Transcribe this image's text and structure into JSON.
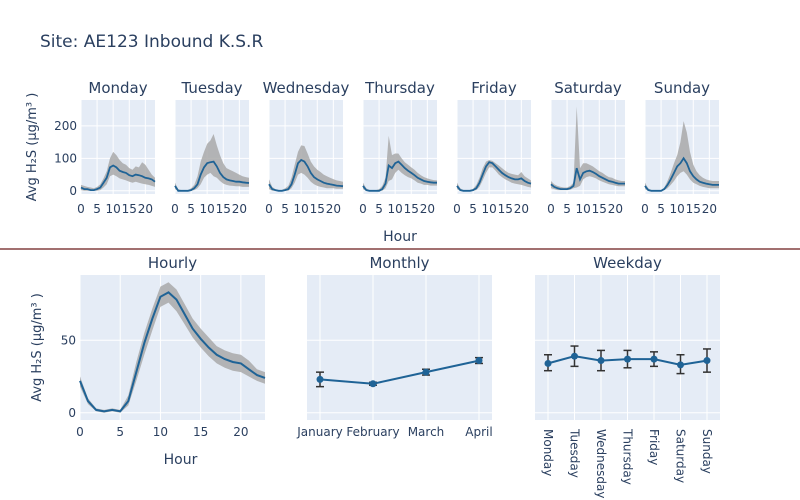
{
  "page_title": "Site: AE123 Inbound K.S.R",
  "colors": {
    "plot_bg": "#e5ecf6",
    "line": "#1f6396",
    "band": "#a9a9a9",
    "grid": "#ffffff",
    "divider": "#6b1a1a",
    "text": "#2a3f5f",
    "error_bar": "#333333"
  },
  "chart_data": [
    {
      "type": "line",
      "title": "Monday",
      "panel": "daily",
      "x": [
        0,
        1,
        2,
        3,
        4,
        5,
        6,
        7,
        8,
        9,
        10,
        11,
        12,
        13,
        14,
        15,
        16,
        17,
        18,
        19,
        20,
        21,
        22,
        23
      ],
      "series": [
        {
          "values": [
            10,
            5,
            5,
            2,
            2,
            5,
            10,
            25,
            40,
            72,
            78,
            72,
            62,
            58,
            55,
            48,
            45,
            50,
            48,
            45,
            40,
            38,
            35,
            28
          ]
        },
        {
          "values": [
            18,
            15,
            12,
            10,
            8,
            12,
            20,
            38,
            60,
            100,
            120,
            110,
            95,
            85,
            80,
            70,
            65,
            75,
            72,
            88,
            80,
            65,
            50,
            40
          ]
        },
        {
          "values": [
            2,
            0,
            0,
            0,
            0,
            0,
            2,
            10,
            20,
            45,
            50,
            45,
            38,
            35,
            32,
            28,
            25,
            28,
            25,
            22,
            20,
            18,
            15,
            12
          ]
        }
      ],
      "ylabel": "Avg H₂S (μg/m³ )",
      "xticks": [
        0,
        5,
        10,
        15,
        20
      ],
      "yticks": [
        0,
        100,
        200
      ],
      "ylim": [
        -10,
        280
      ]
    },
    {
      "type": "line",
      "title": "Tuesday",
      "panel": "daily",
      "x": [
        0,
        1,
        2,
        3,
        4,
        5,
        6,
        7,
        8,
        9,
        10,
        11,
        12,
        13,
        14,
        15,
        16,
        17,
        18,
        19,
        20,
        21,
        22,
        23
      ],
      "series": [
        {
          "values": [
            15,
            0,
            0,
            0,
            0,
            2,
            8,
            20,
            50,
            72,
            85,
            88,
            90,
            75,
            55,
            42,
            35,
            32,
            30,
            28,
            28,
            26,
            25,
            24
          ]
        },
        {
          "values": [
            25,
            5,
            2,
            2,
            2,
            8,
            18,
            45,
            90,
            120,
            145,
            155,
            175,
            140,
            110,
            85,
            70,
            65,
            60,
            55,
            50,
            45,
            42,
            40
          ]
        },
        {
          "values": [
            5,
            0,
            0,
            0,
            0,
            0,
            2,
            8,
            20,
            40,
            50,
            55,
            45,
            40,
            30,
            22,
            18,
            16,
            15,
            14,
            14,
            12,
            12,
            12
          ]
        }
      ],
      "xticks": [
        0,
        5,
        10,
        15,
        20
      ],
      "ylim": [
        -10,
        280
      ]
    },
    {
      "type": "line",
      "title": "Wednesday",
      "panel": "daily",
      "x": [
        0,
        1,
        2,
        3,
        4,
        5,
        6,
        7,
        8,
        9,
        10,
        11,
        12,
        13,
        14,
        15,
        16,
        17,
        18,
        19,
        20,
        21,
        22,
        23
      ],
      "series": [
        {
          "values": [
            20,
            5,
            2,
            0,
            0,
            2,
            5,
            20,
            50,
            85,
            95,
            90,
            75,
            55,
            42,
            35,
            30,
            25,
            22,
            20,
            18,
            16,
            15,
            14
          ]
        },
        {
          "values": [
            35,
            12,
            5,
            2,
            2,
            8,
            15,
            40,
            80,
            120,
            140,
            138,
            115,
            90,
            75,
            65,
            58,
            50,
            45,
            40,
            36,
            32,
            30,
            28
          ]
        },
        {
          "values": [
            5,
            0,
            0,
            0,
            0,
            0,
            0,
            8,
            25,
            50,
            55,
            50,
            40,
            28,
            20,
            15,
            12,
            10,
            8,
            8,
            8,
            6,
            6,
            6
          ]
        }
      ],
      "xticks": [
        0,
        5,
        10,
        15,
        20
      ],
      "ylim": [
        -10,
        280
      ]
    },
    {
      "type": "line",
      "title": "Thursday",
      "panel": "daily",
      "x": [
        0,
        1,
        2,
        3,
        4,
        5,
        6,
        7,
        8,
        9,
        10,
        11,
        12,
        13,
        14,
        15,
        16,
        17,
        18,
        19,
        20,
        21,
        22,
        23
      ],
      "series": [
        {
          "values": [
            15,
            2,
            0,
            0,
            0,
            0,
            5,
            22,
            78,
            70,
            85,
            90,
            80,
            70,
            62,
            55,
            48,
            40,
            35,
            30,
            28,
            26,
            25,
            25
          ]
        },
        {
          "values": [
            25,
            8,
            2,
            2,
            2,
            5,
            15,
            40,
            170,
            110,
            115,
            115,
            100,
            88,
            80,
            72,
            65,
            55,
            48,
            42,
            38,
            35,
            33,
            32
          ]
        },
        {
          "values": [
            5,
            0,
            0,
            0,
            0,
            0,
            0,
            8,
            30,
            35,
            55,
            65,
            55,
            48,
            42,
            38,
            32,
            25,
            22,
            18,
            18,
            16,
            16,
            16
          ]
        }
      ],
      "xticks": [
        0,
        5,
        10,
        15,
        20
      ],
      "ylim": [
        -10,
        280
      ]
    },
    {
      "type": "line",
      "title": "Friday",
      "panel": "daily",
      "x": [
        0,
        1,
        2,
        3,
        4,
        5,
        6,
        7,
        8,
        9,
        10,
        11,
        12,
        13,
        14,
        15,
        16,
        17,
        18,
        19,
        20,
        21,
        22,
        23
      ],
      "series": [
        {
          "values": [
            15,
            2,
            0,
            0,
            0,
            2,
            8,
            25,
            50,
            75,
            88,
            85,
            75,
            65,
            55,
            48,
            42,
            38,
            35,
            35,
            38,
            30,
            25,
            22
          ]
        },
        {
          "values": [
            25,
            8,
            2,
            2,
            2,
            6,
            18,
            40,
            70,
            90,
            95,
            92,
            85,
            78,
            70,
            62,
            55,
            52,
            50,
            48,
            58,
            45,
            38,
            32
          ]
        },
        {
          "values": [
            5,
            0,
            0,
            0,
            0,
            0,
            2,
            12,
            32,
            55,
            72,
            72,
            62,
            50,
            42,
            35,
            30,
            25,
            22,
            20,
            18,
            15,
            12,
            10
          ]
        }
      ],
      "xticks": [
        0,
        5,
        10,
        15,
        20
      ],
      "ylim": [
        -10,
        280
      ]
    },
    {
      "type": "line",
      "title": "Saturday",
      "panel": "daily",
      "x": [
        0,
        1,
        2,
        3,
        4,
        5,
        6,
        7,
        8,
        9,
        10,
        11,
        12,
        13,
        14,
        15,
        16,
        17,
        18,
        19,
        20,
        21,
        22,
        23
      ],
      "series": [
        {
          "values": [
            20,
            12,
            8,
            5,
            5,
            5,
            8,
            15,
            70,
            35,
            55,
            60,
            62,
            58,
            52,
            45,
            40,
            35,
            30,
            28,
            25,
            22,
            22,
            22
          ]
        },
        {
          "values": [
            30,
            20,
            15,
            12,
            10,
            10,
            15,
            25,
            260,
            70,
            85,
            85,
            80,
            75,
            68,
            60,
            55,
            48,
            42,
            40,
            35,
            32,
            30,
            30
          ]
        },
        {
          "values": [
            8,
            5,
            2,
            2,
            2,
            2,
            3,
            8,
            10,
            15,
            35,
            42,
            45,
            42,
            38,
            32,
            28,
            24,
            20,
            18,
            16,
            14,
            14,
            14
          ]
        }
      ],
      "xticks": [
        0,
        5,
        10,
        15,
        20
      ],
      "ylim": [
        -10,
        280
      ]
    },
    {
      "type": "line",
      "title": "Sunday",
      "panel": "daily",
      "x": [
        0,
        1,
        2,
        3,
        4,
        5,
        6,
        7,
        8,
        9,
        10,
        11,
        12,
        13,
        14,
        15,
        16,
        17,
        18,
        19,
        20,
        21,
        22,
        23
      ],
      "series": [
        {
          "values": [
            15,
            2,
            0,
            0,
            0,
            0,
            5,
            18,
            35,
            55,
            75,
            85,
            100,
            85,
            60,
            45,
            35,
            28,
            25,
            22,
            20,
            18,
            18,
            18
          ]
        },
        {
          "values": [
            25,
            8,
            2,
            2,
            2,
            2,
            10,
            30,
            55,
            85,
            110,
            150,
            215,
            180,
            120,
            80,
            60,
            48,
            40,
            35,
            32,
            30,
            30,
            30
          ]
        },
        {
          "values": [
            5,
            0,
            0,
            0,
            0,
            0,
            2,
            8,
            18,
            30,
            45,
            55,
            60,
            50,
            35,
            25,
            20,
            15,
            12,
            10,
            8,
            8,
            8,
            8
          ]
        }
      ],
      "xticks": [
        0,
        5,
        10,
        15,
        20
      ],
      "ylim": [
        -10,
        280
      ]
    },
    {
      "type": "line",
      "title": "Hourly",
      "panel": "hourly",
      "x": [
        0,
        1,
        2,
        3,
        4,
        5,
        6,
        7,
        8,
        9,
        10,
        11,
        12,
        13,
        14,
        15,
        16,
        17,
        18,
        19,
        20,
        21,
        22,
        23
      ],
      "series": [
        {
          "values": [
            22,
            8,
            2,
            1,
            2,
            1,
            8,
            28,
            48,
            65,
            80,
            83,
            78,
            68,
            58,
            51,
            45,
            40,
            37,
            35,
            34,
            30,
            26,
            24
          ]
        },
        {
          "values": [
            25,
            10,
            3,
            2,
            3,
            2,
            12,
            35,
            55,
            72,
            87,
            90,
            85,
            75,
            65,
            58,
            52,
            46,
            43,
            41,
            40,
            36,
            30,
            28
          ]
        },
        {
          "values": [
            18,
            6,
            1,
            0,
            1,
            0,
            5,
            22,
            40,
            57,
            73,
            76,
            70,
            61,
            52,
            45,
            39,
            34,
            31,
            29,
            28,
            25,
            22,
            20
          ]
        }
      ],
      "xlabel": "Hour",
      "ylabel": "Avg H₂S (μg/m³ )",
      "xticks": [
        0,
        5,
        10,
        15,
        20
      ],
      "yticks": [
        0,
        50
      ],
      "ylim": [
        -5,
        95
      ],
      "xlim": [
        0,
        23
      ]
    },
    {
      "type": "line",
      "title": "Monthly",
      "panel": "monthly",
      "categories": [
        "January",
        "February",
        "March",
        "April"
      ],
      "values": [
        23,
        20,
        28,
        36
      ],
      "error_low": [
        18,
        19,
        26,
        34
      ],
      "error_high": [
        28,
        21,
        30,
        38
      ],
      "ylim": [
        -5,
        95
      ]
    },
    {
      "type": "line",
      "title": "Weekday",
      "panel": "weekday",
      "categories": [
        "Monday",
        "Tuesday",
        "Wednesday",
        "Thursday",
        "Friday",
        "Saturday",
        "Sunday"
      ],
      "values": [
        34,
        39,
        36,
        37,
        37,
        33,
        36
      ],
      "error_low": [
        29,
        32,
        29,
        31,
        32,
        27,
        28
      ],
      "error_high": [
        40,
        46,
        43,
        43,
        42,
        40,
        44
      ],
      "ylim": [
        -5,
        95
      ]
    }
  ],
  "shared_xlabel": "Hour"
}
